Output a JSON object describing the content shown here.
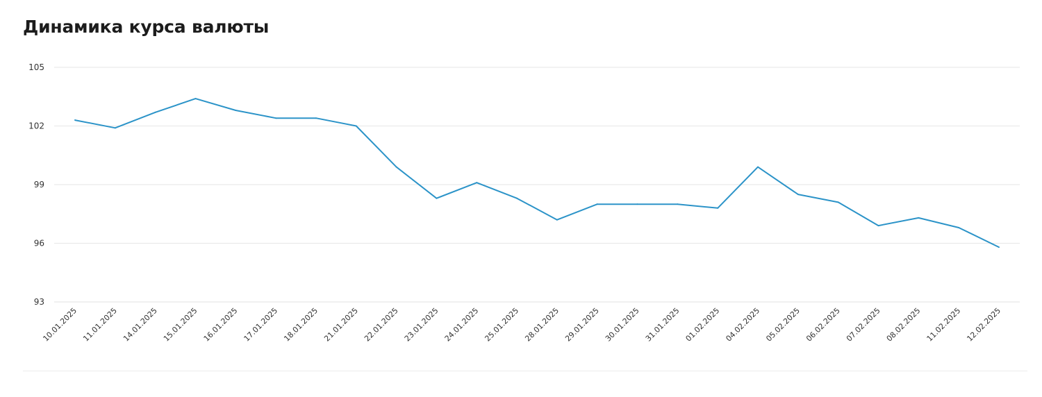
{
  "title": "Динамика курса валюты",
  "colors": {
    "line": "#2b93c8",
    "grid": "#e6e6e6",
    "text": "#333333"
  },
  "chart_data": {
    "type": "line",
    "title": "Динамика курса валюты",
    "xlabel": "",
    "ylabel": "",
    "ylim": [
      93,
      105
    ],
    "yticks": [
      105,
      102,
      99,
      96,
      93
    ],
    "grid": true,
    "categories": [
      "10.01.2025",
      "11.01.2025",
      "14.01.2025",
      "15.01.2025",
      "16.01.2025",
      "17.01.2025",
      "18.01.2025",
      "21.01.2025",
      "22.01.2025",
      "23.01.2025",
      "24.01.2025",
      "25.01.2025",
      "28.01.2025",
      "29.01.2025",
      "30.01.2025",
      "31.01.2025",
      "01.02.2025",
      "04.02.2025",
      "05.02.2025",
      "06.02.2025",
      "07.02.2025",
      "08.02.2025",
      "11.02.2025",
      "12.02.2025"
    ],
    "series": [
      {
        "values": [
          102.3,
          101.9,
          102.7,
          103.4,
          102.8,
          102.4,
          102.4,
          102.0,
          99.9,
          98.3,
          99.1,
          98.3,
          97.2,
          98.0,
          98.0,
          98.0,
          97.8,
          99.9,
          98.5,
          98.1,
          96.9,
          97.3,
          96.8,
          95.8
        ]
      }
    ]
  }
}
